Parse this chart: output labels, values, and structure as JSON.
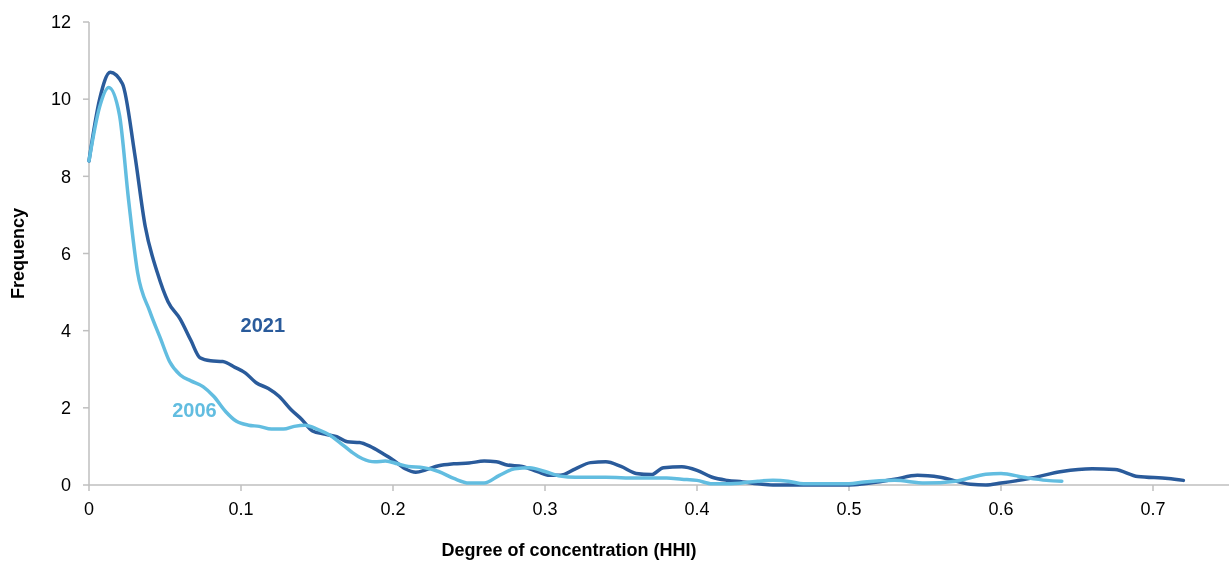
{
  "chart_data": {
    "type": "line",
    "xlabel": "Degree of concentration (HHI)",
    "ylabel": "Frequency",
    "xlim": [
      0,
      0.75
    ],
    "xticks": [
      0,
      0.1,
      0.2,
      0.3,
      0.4,
      0.5,
      0.6,
      0.7
    ],
    "ylim": [
      0,
      12
    ],
    "yticks": [
      0,
      2,
      4,
      6,
      8,
      10,
      12
    ],
    "grid": false,
    "legend": false,
    "marker": "none",
    "line_style": "solid",
    "series": [
      {
        "name": "2021",
        "color": "#2a5b9b",
        "x": [
          0,
          0.007,
          0.014,
          0.022,
          0.03,
          0.037,
          0.045,
          0.052,
          0.06,
          0.067,
          0.073,
          0.08,
          0.088,
          0.096,
          0.103,
          0.11,
          0.118,
          0.125,
          0.133,
          0.14,
          0.147,
          0.155,
          0.163,
          0.17,
          0.178,
          0.185,
          0.193,
          0.2,
          0.208,
          0.215,
          0.222,
          0.23,
          0.24,
          0.25,
          0.26,
          0.268,
          0.275,
          0.285,
          0.295,
          0.303,
          0.31,
          0.32,
          0.33,
          0.34,
          0.35,
          0.36,
          0.37,
          0.378,
          0.39,
          0.4,
          0.41,
          0.42,
          0.43,
          0.44,
          0.45,
          0.46,
          0.5,
          0.51,
          0.53,
          0.545,
          0.56,
          0.58,
          0.59,
          0.6,
          0.62,
          0.64,
          0.66,
          0.675,
          0.69,
          0.71,
          0.72
        ],
        "values": [
          8.4,
          10.0,
          10.7,
          10.4,
          8.6,
          6.7,
          5.5,
          4.75,
          4.3,
          3.75,
          3.3,
          3.22,
          3.2,
          3.05,
          2.9,
          2.65,
          2.5,
          2.3,
          1.95,
          1.7,
          1.4,
          1.32,
          1.25,
          1.12,
          1.1,
          1.0,
          0.82,
          0.65,
          0.42,
          0.33,
          0.4,
          0.5,
          0.55,
          0.57,
          0.62,
          0.6,
          0.52,
          0.48,
          0.35,
          0.25,
          0.25,
          0.42,
          0.58,
          0.6,
          0.48,
          0.3,
          0.27,
          0.45,
          0.47,
          0.38,
          0.2,
          0.12,
          0.08,
          0.03,
          0,
          0,
          0,
          0.03,
          0.15,
          0.25,
          0.2,
          0.02,
          0,
          0.05,
          0.18,
          0.35,
          0.42,
          0.4,
          0.22,
          0.17,
          0.12
        ]
      },
      {
        "name": "2006",
        "color": "#62bde0",
        "x": [
          0,
          0.007,
          0.013,
          0.02,
          0.026,
          0.032,
          0.04,
          0.047,
          0.053,
          0.06,
          0.067,
          0.075,
          0.082,
          0.09,
          0.097,
          0.105,
          0.112,
          0.12,
          0.128,
          0.135,
          0.142,
          0.15,
          0.158,
          0.165,
          0.173,
          0.18,
          0.188,
          0.195,
          0.203,
          0.21,
          0.22,
          0.23,
          0.24,
          0.25,
          0.26,
          0.27,
          0.28,
          0.29,
          0.3,
          0.31,
          0.32,
          0.34,
          0.36,
          0.38,
          0.39,
          0.4,
          0.41,
          0.42,
          0.44,
          0.45,
          0.46,
          0.47,
          0.5,
          0.51,
          0.53,
          0.55,
          0.57,
          0.59,
          0.6,
          0.615,
          0.63,
          0.64
        ],
        "values": [
          8.4,
          9.8,
          10.3,
          9.6,
          7.4,
          5.5,
          4.5,
          3.8,
          3.2,
          2.85,
          2.7,
          2.55,
          2.3,
          1.9,
          1.65,
          1.55,
          1.52,
          1.45,
          1.45,
          1.52,
          1.55,
          1.45,
          1.3,
          1.1,
          0.85,
          0.68,
          0.6,
          0.62,
          0.55,
          0.48,
          0.45,
          0.35,
          0.17,
          0.05,
          0.05,
          0.25,
          0.42,
          0.45,
          0.35,
          0.23,
          0.2,
          0.2,
          0.18,
          0.18,
          0.15,
          0.12,
          0.03,
          0.03,
          0.1,
          0.12,
          0.1,
          0.03,
          0.03,
          0.08,
          0.12,
          0.05,
          0.1,
          0.28,
          0.3,
          0.2,
          0.12,
          0.1
        ]
      }
    ]
  }
}
